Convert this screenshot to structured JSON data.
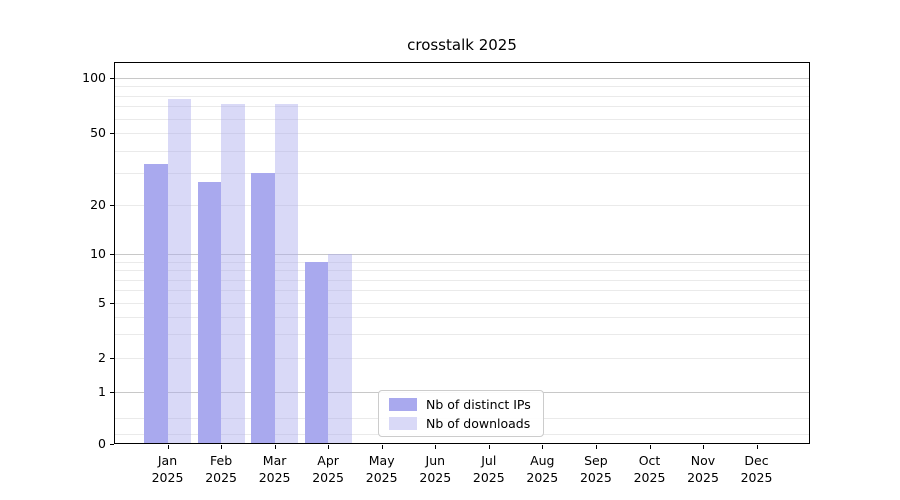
{
  "chart_data": {
    "type": "bar",
    "title": "crosstalk 2025",
    "categories": [
      "Jan 2025",
      "Feb 2025",
      "Mar 2025",
      "Apr 2025",
      "May 2025",
      "Jun 2025",
      "Jul 2025",
      "Aug 2025",
      "Sep 2025",
      "Oct 2025",
      "Nov 2025",
      "Dec 2025"
    ],
    "series": [
      {
        "name": "Nb of distinct IPs",
        "color": "#a9a9ee",
        "swatch_color": "#a9a9ee",
        "values": [
          34,
          27,
          30,
          9,
          null,
          null,
          null,
          null,
          null,
          null,
          null,
          null
        ]
      },
      {
        "name": "Nb of downloads",
        "color": "rgba(170,170,238,0.45)",
        "swatch_color": "#d9d9f7",
        "values": [
          77,
          72,
          72,
          10,
          null,
          null,
          null,
          null,
          null,
          null,
          null,
          null
        ]
      }
    ],
    "yticks": [
      0,
      1,
      2,
      5,
      10,
      20,
      50,
      100
    ],
    "major_gridlines": [
      1,
      10,
      100
    ],
    "minor_gridlines": [
      0.2,
      0.5,
      2,
      3,
      4,
      5,
      6,
      7,
      8,
      9,
      20,
      30,
      40,
      50,
      60,
      70,
      80,
      90
    ],
    "scale": "log-like (linear below 1)",
    "ylim": [
      0,
      125
    ],
    "grid": "on",
    "legend_position": "lower center",
    "colors": {
      "major_grid": "#c8c8c8",
      "minor_grid": "#eaeaea",
      "axis": "#000000",
      "legend_border": "#cccccc"
    }
  }
}
